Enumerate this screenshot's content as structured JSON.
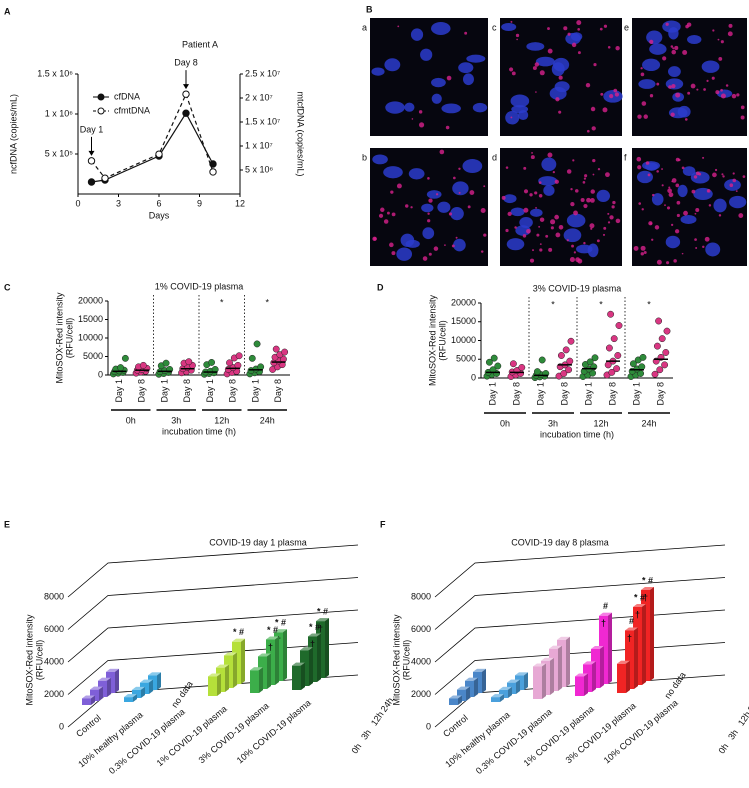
{
  "panel_labels": [
    "A",
    "B",
    "C",
    "D",
    "E",
    "F"
  ],
  "images": {
    "labels": [
      "a",
      "b",
      "c",
      "d",
      "e",
      "f"
    ]
  },
  "chart_data": [
    {
      "type": "line",
      "title": "Patient A",
      "xlabel": "Days",
      "ylabel": "ncfDNA (copies/mL)",
      "y2label": "mtcfDNA (copies/mL)",
      "x": [
        1,
        2,
        6,
        8,
        10
      ],
      "xlim": [
        0,
        12
      ],
      "xticks": [
        0,
        3,
        6,
        9,
        12
      ],
      "ylim": [
        0,
        1500000
      ],
      "yticks": [
        {
          "value": 500000,
          "label": "5 x 10⁵"
        },
        {
          "value": 1000000,
          "label": "1 x 10⁶"
        },
        {
          "value": 1500000,
          "label": "1.5 x 10⁶"
        }
      ],
      "y2lim": [
        0,
        25000000
      ],
      "y2ticks": [
        {
          "value": 5000000,
          "label": "5 x 10⁶"
        },
        {
          "value": 10000000,
          "label": "1 x 10⁷"
        },
        {
          "value": 15000000,
          "label": "1.5 x 10⁷"
        },
        {
          "value": 20000000,
          "label": "2 x 10⁷"
        },
        {
          "value": 25000000,
          "label": "2.5 x 10⁷"
        }
      ],
      "series": [
        {
          "name": "cfDNA",
          "color": "#111111",
          "marker": "filled",
          "dash": false,
          "values": [
            150000,
            175000,
            475000,
            1010000,
            375000
          ]
        },
        {
          "name": "cfmtDNA",
          "color": "#111111",
          "marker": "open",
          "dash": true,
          "axis": "y2",
          "values": [
            6900000,
            3300000,
            8300000,
            20800000,
            4600000
          ]
        }
      ],
      "annotations": [
        {
          "text": "Day 1",
          "color": "#2a9d3a",
          "x": 1
        },
        {
          "text": "Day 8",
          "color": "#e0208a",
          "x": 8
        }
      ]
    },
    {
      "type": "strip",
      "title": "1% COVID-19 plasma",
      "ylabel": [
        "MitoSOX-Red intensity",
        "(RFU/cell)"
      ],
      "xlabel": "incubation time (h)",
      "ylim": [
        0,
        20000
      ],
      "yticks": [
        0,
        5000,
        10000,
        15000,
        20000
      ],
      "categories": [
        "Day 1",
        "Day 8",
        "Day 1",
        "Day 8",
        "Day 1",
        "Day 8",
        "Day 1",
        "Day 8"
      ],
      "groups": [
        "0h",
        "3h",
        "12h",
        "24h"
      ],
      "colors": [
        "#2e8b3a",
        "#d93682",
        "#2e8b3a",
        "#d93682",
        "#2e8b3a",
        "#d93682",
        "#2e8b3a",
        "#d93682"
      ],
      "points": [
        [
          300,
          500,
          700,
          900,
          1100,
          1300,
          1600,
          2000,
          4500
        ],
        [
          500,
          800,
          1000,
          1300,
          1500,
          1800,
          2200,
          2600
        ],
        [
          200,
          400,
          700,
          900,
          1200,
          1500,
          2500,
          3200
        ],
        [
          600,
          900,
          1300,
          1700,
          2100,
          2600,
          3200,
          3600
        ],
        [
          200,
          400,
          600,
          800,
          1000,
          1500,
          2800,
          3400
        ],
        [
          300,
          700,
          1000,
          1500,
          2000,
          2600,
          3300,
          4600,
          5200
        ],
        [
          300,
          600,
          900,
          1200,
          1600,
          2200,
          4500,
          8400
        ],
        [
          1500,
          2200,
          2800,
          3300,
          3800,
          4300,
          4800,
          5500,
          6200,
          7000
        ]
      ],
      "means": [
        1000,
        1300,
        1000,
        1700,
        800,
        1800,
        1400,
        3500
      ],
      "significance": [
        null,
        null,
        null,
        null,
        null,
        "*",
        null,
        "*"
      ]
    },
    {
      "type": "strip",
      "title": "3% COVID-19 plasma",
      "ylabel": [
        "MitoSOX-Red intensity",
        "(RFU/cell)"
      ],
      "xlabel": "incubation time (h)",
      "ylim": [
        0,
        20000
      ],
      "yticks": [
        0,
        5000,
        10000,
        15000,
        20000
      ],
      "categories": [
        "Day 1",
        "Day 8",
        "Day 1",
        "Day 8",
        "Day 1",
        "Day 8",
        "Day 1",
        "Day 8"
      ],
      "groups": [
        "0h",
        "3h",
        "12h",
        "24h"
      ],
      "colors": [
        "#2e8b3a",
        "#d93682",
        "#2e8b3a",
        "#d93682",
        "#2e8b3a",
        "#d93682",
        "#2e8b3a",
        "#d93682"
      ],
      "points": [
        [
          500,
          900,
          1200,
          1500,
          2200,
          3200,
          4200,
          5300
        ],
        [
          400,
          800,
          1200,
          1600,
          2000,
          2800,
          3800
        ],
        [
          100,
          300,
          500,
          700,
          900,
          1200,
          1700,
          4800
        ],
        [
          500,
          1200,
          2200,
          3000,
          3500,
          4500,
          6000,
          7500,
          9800
        ],
        [
          400,
          800,
          1300,
          1800,
          2400,
          3000,
          3600,
          4300,
          5400
        ],
        [
          800,
          1500,
          2500,
          3500,
          4500,
          6000,
          8000,
          10500,
          14000,
          17000
        ],
        [
          400,
          800,
          1200,
          1800,
          2400,
          3000,
          3800,
          4800,
          5500
        ],
        [
          1000,
          2200,
          3500,
          4500,
          5500,
          6800,
          8500,
          10500,
          12500,
          15200
        ]
      ],
      "means": [
        1500,
        1500,
        700,
        3500,
        2500,
        4500,
        2200,
        5000
      ],
      "significance": [
        null,
        null,
        null,
        "*",
        null,
        "*",
        null,
        "*"
      ]
    },
    {
      "type": "bar3d",
      "title": "COVID-19 day 1 plasma",
      "ylabel": [
        "MitoSOX-Red intensity",
        "(RFU/cell)"
      ],
      "ylim": [
        0,
        8000
      ],
      "yticks": [
        0,
        2000,
        4000,
        6000,
        8000
      ],
      "categories": [
        "Control",
        "10% healthy plasma",
        "0.3% COVID-19 plasma",
        "1% COVID-19 plasma",
        "3% COVID-19 plasma",
        "10% COVID-19 plasma"
      ],
      "colors": [
        "#7f5fd8",
        "#3aa7e0",
        null,
        "#b5e03a",
        "#3cae4a",
        "#1f6a2b"
      ],
      "missing_label": "no data",
      "series": [
        {
          "name": "0h",
          "values": [
            400,
            300,
            null,
            1200,
            1400,
            1500
          ]
        },
        {
          "name": "3h",
          "values": [
            700,
            500,
            null,
            1500,
            2000,
            2200
          ]
        },
        {
          "name": "12h",
          "values": [
            1000,
            700,
            null,
            2000,
            2800,
            2800
          ]
        },
        {
          "name": "24h",
          "values": [
            1300,
            900,
            null,
            2600,
            3000,
            3500
          ]
        }
      ],
      "top_labels": [
        [
          null,
          null,
          null,
          null,
          null,
          null
        ],
        [
          null,
          null,
          null,
          null,
          null,
          null
        ],
        [
          null,
          null,
          null,
          null,
          "* #",
          "* #"
        ],
        [
          null,
          null,
          null,
          "* #",
          "* #",
          "* #"
        ]
      ],
      "face_labels": [
        [
          null,
          null,
          null,
          null,
          null,
          null
        ],
        [
          null,
          null,
          null,
          null,
          null,
          null
        ],
        [
          null,
          null,
          null,
          null,
          "†",
          "†"
        ],
        [
          null,
          null,
          null,
          null,
          "†",
          "†"
        ]
      ]
    },
    {
      "type": "bar3d",
      "title": "COVID-19 day 8 plasma",
      "ylabel": [
        "MitoSOX-Red intensity",
        "(RFU/cell)"
      ],
      "ylim": [
        0,
        8000
      ],
      "yticks": [
        0,
        2000,
        4000,
        6000,
        8000
      ],
      "categories": [
        "Control",
        "10% healthy plasma",
        "0.3% COVID-19 plasma",
        "1% COVID-19 plasma",
        "3% COVID-19 plasma",
        "10% COVID-19 plasma"
      ],
      "colors": [
        "#4a86c8",
        "#4aa0dc",
        "#e7a8d4",
        "#f028d2",
        "#f02424",
        null
      ],
      "missing_label": "no data",
      "series": [
        {
          "name": "0h",
          "values": [
            400,
            300,
            2000,
            1200,
            1800,
            null
          ]
        },
        {
          "name": "3h",
          "values": [
            700,
            500,
            2100,
            1700,
            3600,
            null
          ]
        },
        {
          "name": "12h",
          "values": [
            1000,
            700,
            2600,
            2400,
            4800,
            null
          ]
        },
        {
          "name": "24h",
          "values": [
            1300,
            900,
            2900,
            4200,
            5600,
            null
          ]
        }
      ],
      "top_labels": [
        [
          null,
          null,
          null,
          null,
          null,
          null
        ],
        [
          null,
          null,
          null,
          null,
          "#",
          null
        ],
        [
          null,
          null,
          null,
          null,
          "* #",
          null
        ],
        [
          null,
          null,
          null,
          "#",
          "* #",
          null
        ]
      ],
      "face_labels": [
        [
          null,
          null,
          null,
          null,
          null,
          null
        ],
        [
          null,
          null,
          null,
          null,
          "†",
          null
        ],
        [
          null,
          null,
          null,
          null,
          "†",
          null
        ],
        [
          null,
          null,
          null,
          "†",
          "†",
          null
        ]
      ]
    }
  ]
}
